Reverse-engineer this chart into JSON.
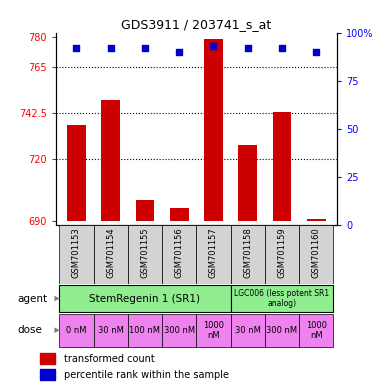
{
  "title": "GDS3911 / 203741_s_at",
  "samples": [
    "GSM701153",
    "GSM701154",
    "GSM701155",
    "GSM701156",
    "GSM701157",
    "GSM701158",
    "GSM701159",
    "GSM701160"
  ],
  "bar_values": [
    737,
    749,
    700,
    696,
    779,
    727,
    743,
    691
  ],
  "percentile_values": [
    92,
    92,
    92,
    90,
    93,
    92,
    92,
    90
  ],
  "ylim_left": [
    688,
    782
  ],
  "ylim_right": [
    0,
    100
  ],
  "yticks_left": [
    690,
    720,
    742.5,
    765,
    780
  ],
  "ytick_labels_left": [
    "690",
    "720",
    "742.5",
    "765",
    "780"
  ],
  "yticks_right": [
    0,
    25,
    50,
    75,
    100
  ],
  "ytick_labels_right": [
    "0",
    "25",
    "50",
    "75",
    "100%"
  ],
  "hlines": [
    765,
    742.5,
    720
  ],
  "bar_color": "#CC0000",
  "dot_color": "#0000CC",
  "bar_bottom": 690,
  "agent1_label": "StemRegenin 1 (SR1)",
  "agent2_label": "LGC006 (less potent SR1\nanalog)",
  "agent_color": "#90EE90",
  "dose_labels": [
    "0 nM",
    "30 nM",
    "100 nM",
    "300 nM",
    "1000\nnM",
    "30 nM",
    "300 nM",
    "1000\nnM"
  ],
  "dose_color": "#EE82EE",
  "sample_bg_color": "#D3D3D3",
  "legend_bar_color": "#CC0000",
  "legend_dot_color": "#0000CC",
  "background_color": "#ffffff"
}
